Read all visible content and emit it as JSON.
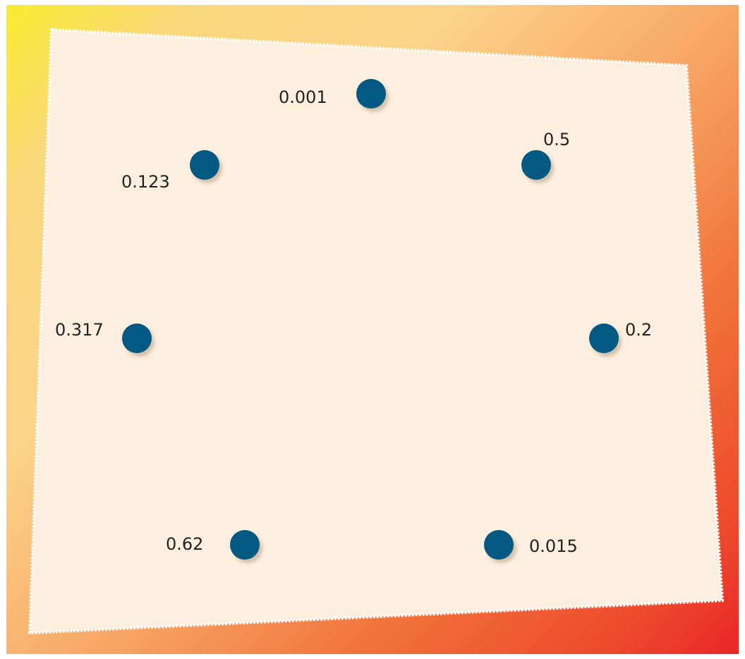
{
  "points": [
    {
      "label": "0.001"
    },
    {
      "label": "0.5"
    },
    {
      "label": "0.123"
    },
    {
      "label": "0.317"
    },
    {
      "label": "0.2"
    },
    {
      "label": "0.62"
    },
    {
      "label": "0.015"
    }
  ],
  "colors": {
    "dot": "#045983",
    "card": "#fcefdf",
    "card_border": "#ffffff",
    "gradient_start": "#f7ec2f",
    "gradient_end": "#e8262a"
  }
}
